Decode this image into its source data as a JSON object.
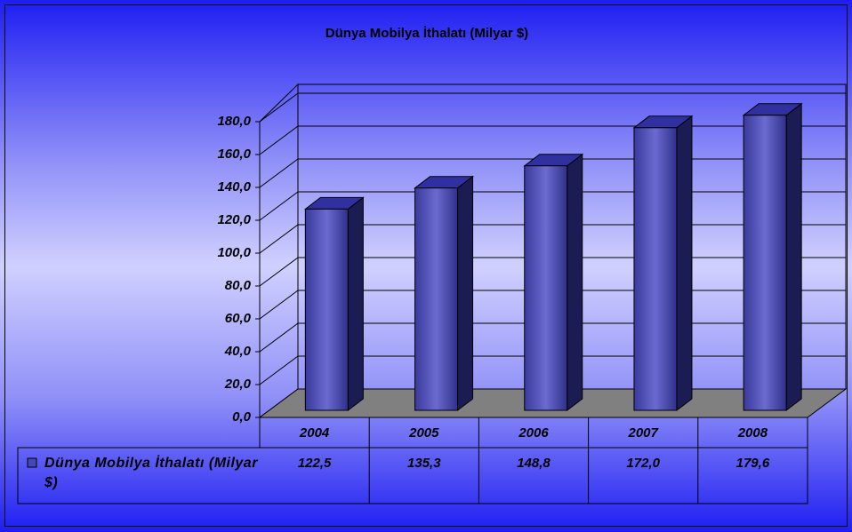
{
  "chart_data": {
    "type": "bar3d",
    "title": "Dünya Mobilya İthalatı (Milyar $)",
    "categories": [
      "2004",
      "2005",
      "2006",
      "2007",
      "2008"
    ],
    "series": [
      {
        "name": "Dünya Mobilya İthalatı (Milyar $)",
        "color": "#4646b4",
        "values": [
          122.5,
          135.3,
          148.8,
          172.0,
          179.6
        ],
        "value_labels": [
          "122,5",
          "135,3",
          "148,8",
          "172,0",
          "179,6"
        ]
      }
    ],
    "ylim": [
      0,
      180
    ],
    "yticks": [
      {
        "value": 0,
        "label": "0,0"
      },
      {
        "value": 20,
        "label": "20,0"
      },
      {
        "value": 40,
        "label": "40,0"
      },
      {
        "value": 60,
        "label": "60,0"
      },
      {
        "value": 80,
        "label": "80,0"
      },
      {
        "value": 100,
        "label": "100,0"
      },
      {
        "value": 120,
        "label": "120,0"
      },
      {
        "value": 140,
        "label": "140,0"
      },
      {
        "value": 160,
        "label": "160,0"
      },
      {
        "value": 180,
        "label": "180,0"
      }
    ],
    "grid": true,
    "data_table": true
  }
}
